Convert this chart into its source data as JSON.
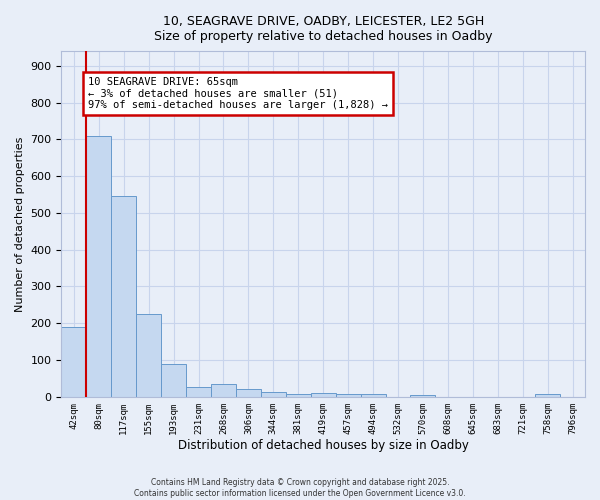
{
  "title_line1": "10, SEAGRAVE DRIVE, OADBY, LEICESTER, LE2 5GH",
  "title_line2": "Size of property relative to detached houses in Oadby",
  "xlabel": "Distribution of detached houses by size in Oadby",
  "ylabel": "Number of detached properties",
  "bar_labels": [
    "42sqm",
    "80sqm",
    "117sqm",
    "155sqm",
    "193sqm",
    "231sqm",
    "268sqm",
    "306sqm",
    "344sqm",
    "381sqm",
    "419sqm",
    "457sqm",
    "494sqm",
    "532sqm",
    "570sqm",
    "608sqm",
    "645sqm",
    "683sqm",
    "721sqm",
    "758sqm",
    "796sqm"
  ],
  "bar_heights": [
    190,
    710,
    545,
    225,
    90,
    27,
    35,
    22,
    12,
    8,
    10,
    8,
    7,
    0,
    5,
    0,
    0,
    0,
    0,
    8,
    0
  ],
  "bar_color": "#c5d8f0",
  "bar_edge_color": "#6699cc",
  "background_color": "#e8eef8",
  "grid_color": "#c8d4ec",
  "annotation_text": "10 SEAGRAVE DRIVE: 65sqm\n← 3% of detached houses are smaller (51)\n97% of semi-detached houses are larger (1,828) →",
  "annotation_box_color": "#ffffff",
  "annotation_box_edge_color": "#cc0000",
  "vline_color": "#cc0000",
  "ylim": [
    0,
    940
  ],
  "yticks": [
    0,
    100,
    200,
    300,
    400,
    500,
    600,
    700,
    800,
    900
  ],
  "footer_line1": "Contains HM Land Registry data © Crown copyright and database right 2025.",
  "footer_line2": "Contains public sector information licensed under the Open Government Licence v3.0."
}
